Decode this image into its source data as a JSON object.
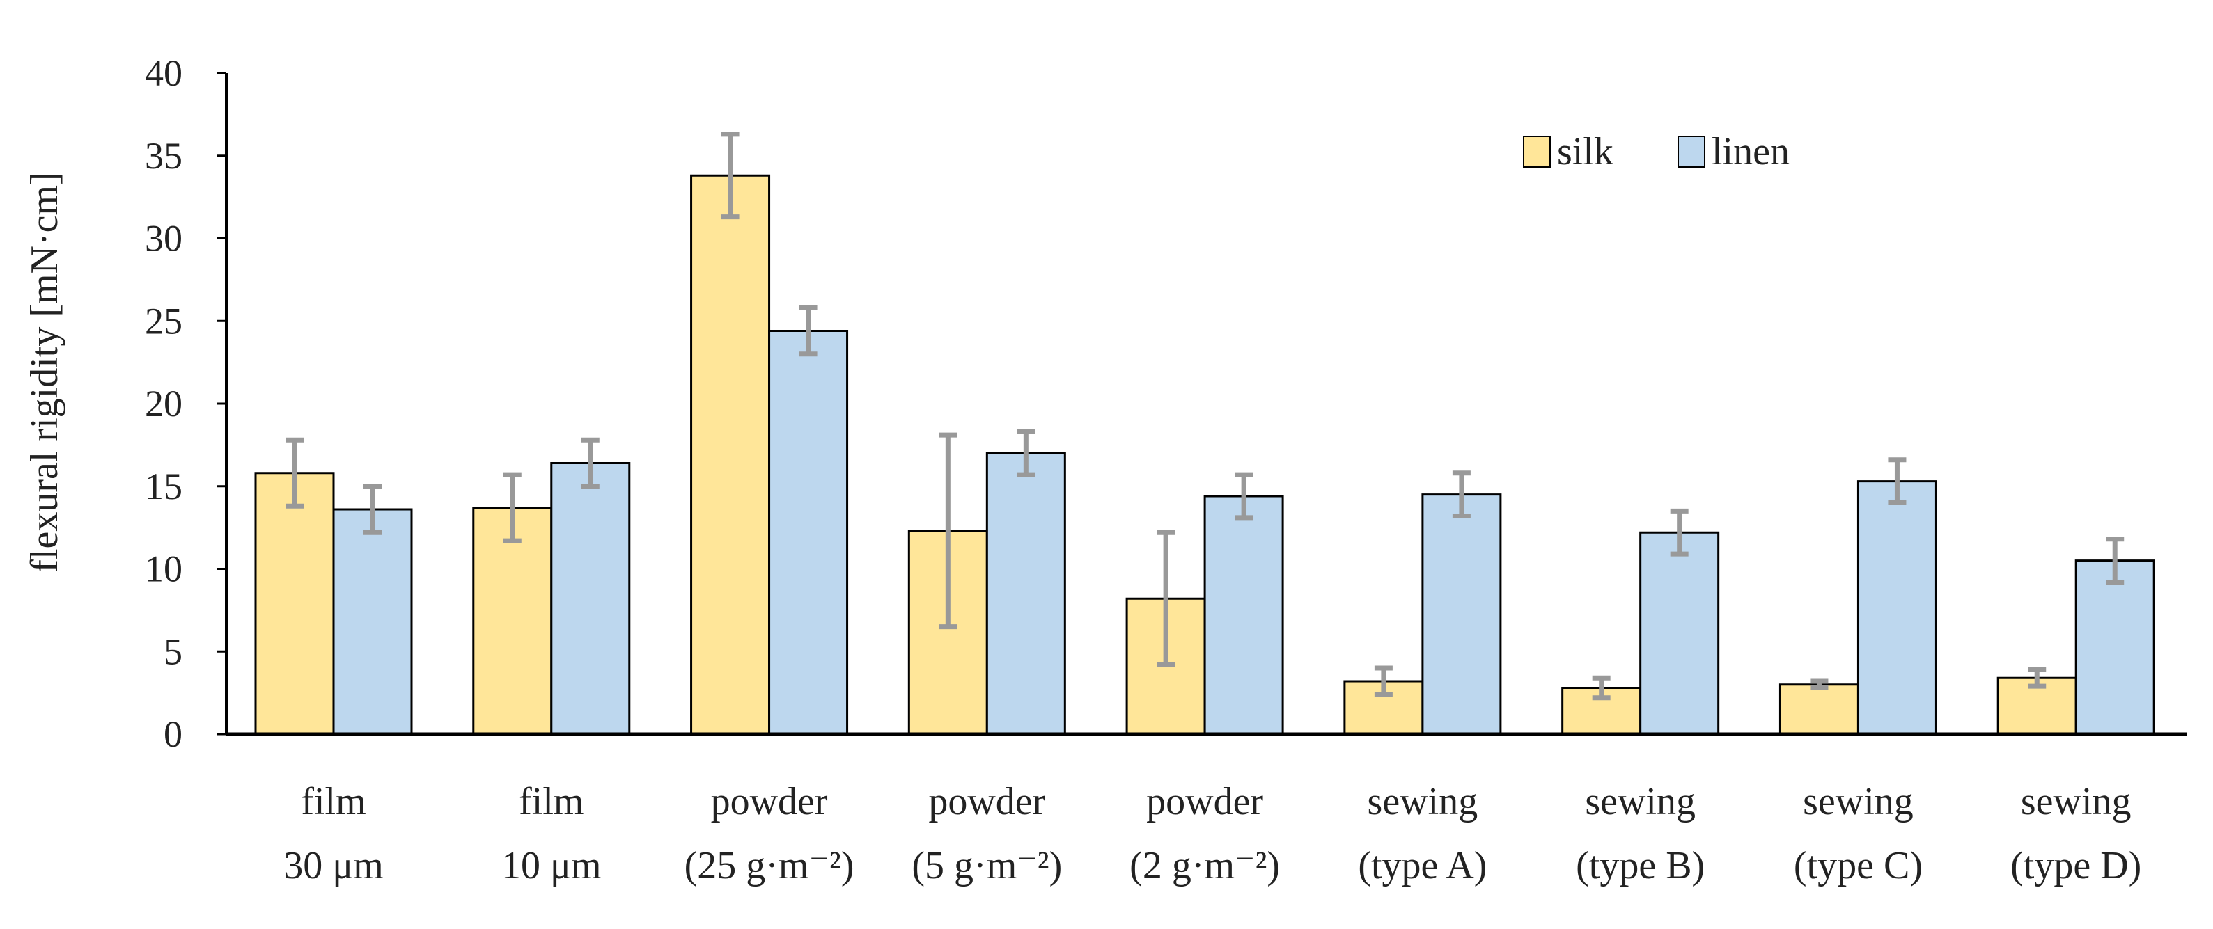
{
  "chart_data": {
    "type": "bar",
    "title": "",
    "xlabel": "",
    "ylabel": "flexural rigidity [mN·cm]",
    "ylim": [
      0,
      40
    ],
    "yticks": [
      0,
      5,
      10,
      15,
      20,
      25,
      30,
      35,
      40
    ],
    "grid": false,
    "legend_position": "top-right",
    "categories": [
      [
        "film",
        "30 μm"
      ],
      [
        "film",
        "10 μm"
      ],
      [
        "powder",
        "(25 g·m⁻²)"
      ],
      [
        "powder",
        "(5 g·m⁻²)"
      ],
      [
        "powder",
        "(2 g·m⁻²)"
      ],
      [
        "sewing",
        "(type A)"
      ],
      [
        "sewing",
        "(type B)"
      ],
      [
        "sewing",
        "(type C)"
      ],
      [
        "sewing",
        "(type D)"
      ]
    ],
    "series": [
      {
        "name": "silk",
        "color": "#FFE699",
        "values": [
          15.8,
          13.7,
          33.8,
          12.3,
          8.2,
          3.2,
          2.8,
          3.0,
          3.4
        ],
        "errors": [
          2.0,
          2.0,
          2.5,
          5.8,
          4.0,
          0.8,
          0.6,
          0.2,
          0.5
        ]
      },
      {
        "name": "linen",
        "color": "#BDD7EE",
        "values": [
          13.6,
          16.4,
          24.4,
          17.0,
          14.4,
          14.5,
          12.2,
          15.3,
          10.5
        ],
        "errors": [
          1.4,
          1.4,
          1.4,
          1.3,
          1.3,
          1.3,
          1.3,
          1.3,
          1.3
        ]
      }
    ]
  }
}
